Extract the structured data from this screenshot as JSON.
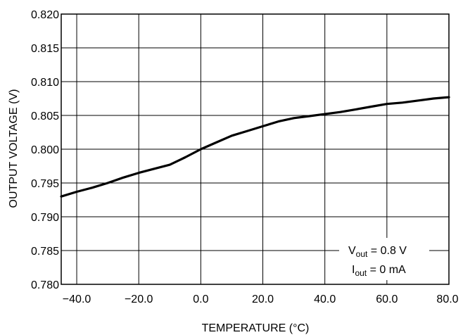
{
  "chart_data": {
    "type": "line",
    "title": "",
    "xlabel": "TEMPERATURE (°C)",
    "ylabel": "OUTPUT VOLTAGE (V)",
    "xlim": [
      -45,
      80
    ],
    "ylim": [
      0.78,
      0.82
    ],
    "xticks": [
      "−40.0",
      "−20.0",
      "0.0",
      "20.0",
      "40.0",
      "60.0",
      "80.0"
    ],
    "xtick_values": [
      -40,
      -20,
      0,
      20,
      40,
      60,
      80
    ],
    "yticks": [
      "0.780",
      "0.785",
      "0.790",
      "0.795",
      "0.800",
      "0.805",
      "0.810",
      "0.815",
      "0.820"
    ],
    "ytick_values": [
      0.78,
      0.785,
      0.79,
      0.795,
      0.8,
      0.805,
      0.81,
      0.815,
      0.82
    ],
    "grid": true,
    "series": [
      {
        "x": [
          -45,
          -40,
          -35,
          -30,
          -25,
          -20,
          -15,
          -10,
          -5,
          0,
          5,
          10,
          15,
          20,
          25,
          30,
          35,
          40,
          45,
          50,
          55,
          60,
          65,
          70,
          75,
          80
        ],
        "y": [
          0.793,
          0.7937,
          0.7943,
          0.795,
          0.7958,
          0.7965,
          0.7971,
          0.7977,
          0.7988,
          0.8,
          0.801,
          0.802,
          0.8027,
          0.8034,
          0.8041,
          0.8046,
          0.8049,
          0.8052,
          0.8055,
          0.8059,
          0.8063,
          0.8067,
          0.8069,
          0.8072,
          0.8075,
          0.8077
        ]
      }
    ],
    "annotation": {
      "line1_main": "V",
      "line1_sub": "out",
      "line1_rest": " = 0.8 V",
      "line2_main": "I",
      "line2_sub": "out",
      "line2_rest": " = 0 mA"
    }
  }
}
